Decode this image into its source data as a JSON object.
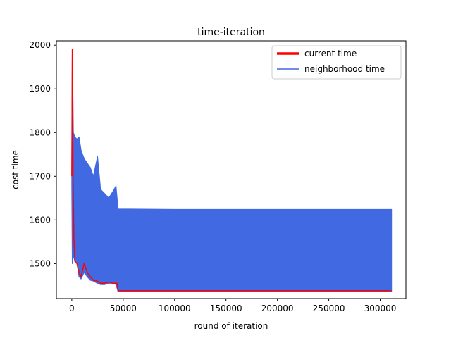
{
  "chart_data": {
    "type": "line",
    "title": "time-iteration",
    "xlabel": "round of iteration",
    "ylabel": "cost time",
    "xlim": [
      -15000,
      325000
    ],
    "ylim": [
      1420,
      2010
    ],
    "xticks": [
      0,
      50000,
      100000,
      150000,
      200000,
      250000,
      300000
    ],
    "yticks": [
      1500,
      1600,
      1700,
      1800,
      1900,
      2000
    ],
    "grid": false,
    "legend": "top-right",
    "series": [
      {
        "name": "current time",
        "color": "#ff0000",
        "points": [
          [
            0,
            1700
          ],
          [
            500,
            1990
          ],
          [
            1200,
            1700
          ],
          [
            2000,
            1560
          ],
          [
            3000,
            1505
          ],
          [
            5000,
            1500
          ],
          [
            7000,
            1480
          ],
          [
            9000,
            1470
          ],
          [
            12000,
            1500
          ],
          [
            15000,
            1480
          ],
          [
            18000,
            1470
          ],
          [
            21000,
            1462
          ],
          [
            25000,
            1460
          ],
          [
            28000,
            1455
          ],
          [
            32000,
            1455
          ],
          [
            36000,
            1458
          ],
          [
            40000,
            1455
          ],
          [
            44000,
            1455
          ],
          [
            45000,
            1438
          ],
          [
            100000,
            1438
          ],
          [
            200000,
            1438
          ],
          [
            311000,
            1438
          ]
        ]
      },
      {
        "name": "neighborhood time",
        "color": "#4169e1",
        "band": [
          [
            0,
            1680,
            1710
          ],
          [
            500,
            1500,
            1990
          ],
          [
            1500,
            1520,
            1800
          ],
          [
            3000,
            1505,
            1790
          ],
          [
            5000,
            1502,
            1785
          ],
          [
            7000,
            1470,
            1790
          ],
          [
            9000,
            1465,
            1760
          ],
          [
            12000,
            1480,
            1740
          ],
          [
            15000,
            1470,
            1730
          ],
          [
            18000,
            1462,
            1720
          ],
          [
            21000,
            1460,
            1700
          ],
          [
            25000,
            1455,
            1745
          ],
          [
            28000,
            1452,
            1670
          ],
          [
            32000,
            1452,
            1660
          ],
          [
            36000,
            1455,
            1650
          ],
          [
            40000,
            1455,
            1665
          ],
          [
            43000,
            1452,
            1678
          ],
          [
            45000,
            1436,
            1625
          ],
          [
            100000,
            1436,
            1624
          ],
          [
            200000,
            1436,
            1624
          ],
          [
            311000,
            1436,
            1624
          ]
        ]
      }
    ]
  }
}
